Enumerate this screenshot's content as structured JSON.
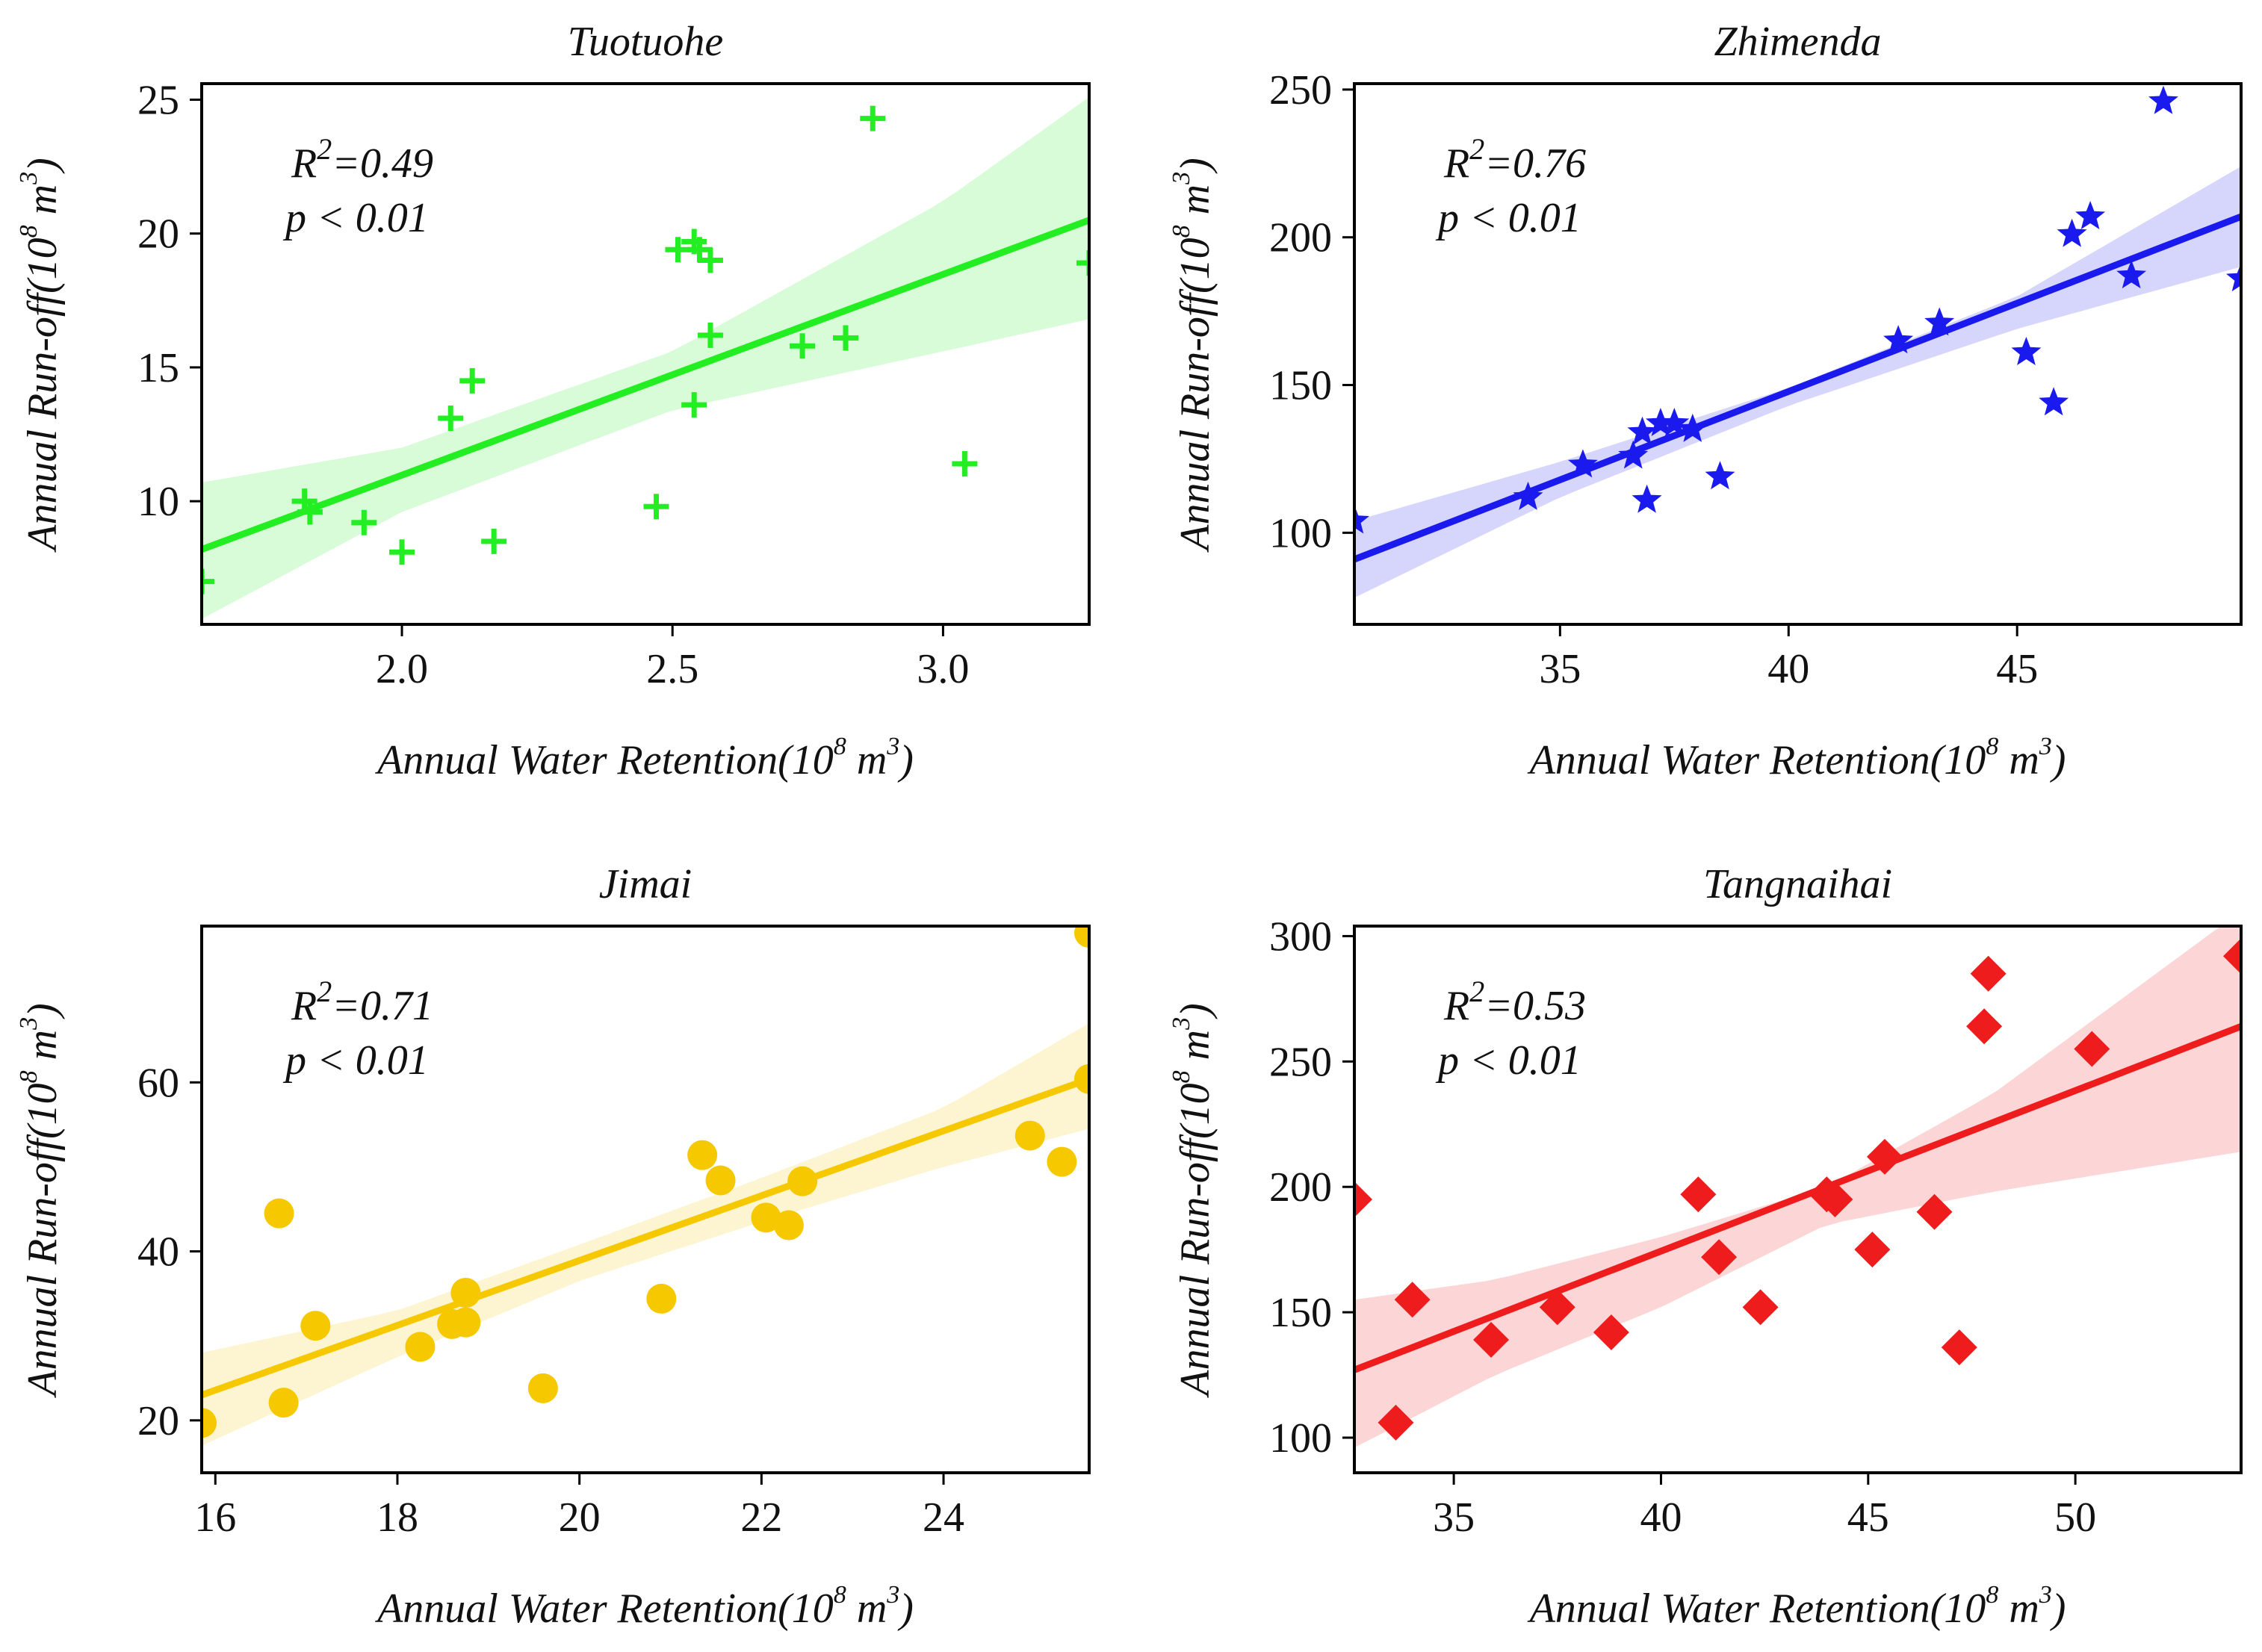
{
  "chart_data": [
    {
      "type": "scatter",
      "title": "Tuotuohe",
      "xlabel": "Annual Water Retention(10",
      "ylabel": "Annual Run-off(10",
      "unit_exponent": "8",
      "unit_base": "m",
      "unit_power": "3",
      "unit_close": ")",
      "annotation_r2_prefix": "R",
      "annotation_r2_sup": "2",
      "annotation_r2_value": "=0.49",
      "annotation_p": "p < 0.01",
      "color": "#22ee22",
      "marker": "plus",
      "xlim": [
        1.63,
        3.27
      ],
      "ylim": [
        5.4,
        25.6
      ],
      "xticks": [
        2.0,
        2.5,
        3.0
      ],
      "yticks": [
        10,
        15,
        20,
        25
      ],
      "x": [
        1.82,
        1.83,
        1.93,
        2.0,
        2.09,
        2.13,
        2.17,
        2.47,
        2.51,
        2.54,
        2.54,
        2.55,
        2.57,
        2.57,
        2.74,
        2.82,
        2.87,
        3.04,
        3.27,
        1.63
      ],
      "y": [
        10.0,
        9.6,
        9.2,
        8.1,
        13.1,
        14.5,
        8.5,
        9.8,
        19.4,
        13.6,
        19.7,
        19.4,
        19.0,
        16.2,
        15.8,
        16.1,
        24.3,
        11.4,
        18.9,
        7.0
      ],
      "fit": {
        "x": [
          1.63,
          3.27
        ],
        "y": [
          8.2,
          20.5
        ]
      },
      "ci_upper": [
        [
          1.63,
          10.7
        ],
        [
          2.0,
          12.0
        ],
        [
          2.5,
          15.6
        ],
        [
          3.0,
          21.2
        ],
        [
          3.27,
          25.1
        ]
      ],
      "ci_lower": [
        [
          1.63,
          5.6
        ],
        [
          2.0,
          9.6
        ],
        [
          2.5,
          13.4
        ],
        [
          3.0,
          15.6
        ],
        [
          3.27,
          16.8
        ]
      ]
    },
    {
      "type": "scatter",
      "title": "Zhimenda",
      "xlabel": "Annual Water Retention(10",
      "ylabel": "Annual Run-off(10",
      "unit_exponent": "8",
      "unit_base": "m",
      "unit_power": "3",
      "unit_close": ")",
      "annotation_r2_prefix": "R",
      "annotation_r2_sup": "2",
      "annotation_r2_value": "=0.76",
      "annotation_p": "p < 0.01",
      "color": "#1a1aee",
      "marker": "star",
      "xlim": [
        30.5,
        49.9
      ],
      "ylim": [
        69,
        252
      ],
      "xticks": [
        35,
        40,
        45
      ],
      "yticks": [
        100,
        150,
        200,
        250
      ],
      "x": [
        30.5,
        34.3,
        35.5,
        36.6,
        36.8,
        36.9,
        37.2,
        37.5,
        37.9,
        38.5,
        42.4,
        43.3,
        45.2,
        45.8,
        46.2,
        46.6,
        47.5,
        48.2,
        49.9
      ],
      "y": [
        104,
        112,
        123,
        126,
        134,
        111,
        137,
        137,
        135,
        119,
        165,
        171,
        161,
        144,
        201,
        207,
        187,
        246,
        186
      ],
      "fit": {
        "x": [
          30.5,
          49.9
        ],
        "y": [
          91,
          207
        ]
      },
      "ci_upper": [
        [
          30.5,
          104
        ],
        [
          35.0,
          124
        ],
        [
          40.0,
          149
        ],
        [
          45.0,
          180
        ],
        [
          49.9,
          224
        ]
      ],
      "ci_lower": [
        [
          30.5,
          78
        ],
        [
          35.0,
          112
        ],
        [
          40.0,
          143
        ],
        [
          45.0,
          169
        ],
        [
          49.9,
          190
        ]
      ]
    },
    {
      "type": "scatter",
      "title": "Jimai",
      "xlabel": "Annual Water Retention(10",
      "ylabel": "Annual Run-off(10",
      "unit_exponent": "8",
      "unit_base": "m",
      "unit_power": "3",
      "unit_close": ")",
      "annotation_r2_prefix": "R",
      "annotation_r2_sup": "2",
      "annotation_r2_value": "=0.71",
      "annotation_p": "p < 0.01",
      "color": "#f5c800",
      "marker": "circle",
      "xlim": [
        15.85,
        25.6
      ],
      "ylim": [
        13.8,
        78.5
      ],
      "xticks": [
        16,
        18,
        20,
        22,
        24
      ],
      "yticks": [
        20,
        40,
        60
      ],
      "x": [
        15.85,
        16.7,
        16.75,
        17.1,
        18.25,
        18.6,
        18.75,
        18.75,
        19.6,
        20.9,
        21.35,
        21.55,
        22.05,
        22.3,
        22.45,
        24.95,
        25.3,
        25.6,
        25.6
      ],
      "y": [
        19.7,
        44.5,
        22.1,
        31.2,
        28.7,
        31.4,
        31.6,
        35.1,
        23.8,
        34.4,
        51.4,
        48.4,
        44.0,
        43.1,
        48.3,
        53.7,
        50.6,
        60.4,
        77.7
      ],
      "fit": {
        "x": [
          15.85,
          25.6
        ],
        "y": [
          23.0,
          60.4
        ]
      },
      "ci_upper": [
        [
          15.85,
          28.0
        ],
        [
          18.0,
          33.0
        ],
        [
          20.0,
          40.8
        ],
        [
          22.0,
          48.7
        ],
        [
          24.0,
          57.0
        ],
        [
          25.6,
          67.0
        ]
      ],
      "ci_lower": [
        [
          15.85,
          17.0
        ],
        [
          18.0,
          27.5
        ],
        [
          20.0,
          36.5
        ],
        [
          22.0,
          43.5
        ],
        [
          24.0,
          50.0
        ],
        [
          25.6,
          54.5
        ]
      ]
    },
    {
      "type": "scatter",
      "title": "Tangnaihai",
      "xlabel": "Annual Water Retention(10",
      "ylabel": "Annual Run-off(10",
      "unit_exponent": "8",
      "unit_base": "m",
      "unit_power": "3",
      "unit_close": ")",
      "annotation_r2_prefix": "R",
      "annotation_r2_sup": "2",
      "annotation_r2_value": "=0.53",
      "annotation_p": "p < 0.01",
      "color": "#ee1c1c",
      "marker": "diamond",
      "xlim": [
        32.6,
        54.0
      ],
      "ylim": [
        86,
        304
      ],
      "xticks": [
        35,
        40,
        45,
        50
      ],
      "yticks": [
        100,
        150,
        200,
        250,
        300
      ],
      "x": [
        32.6,
        33.6,
        34.0,
        35.9,
        37.5,
        38.8,
        40.9,
        41.4,
        42.4,
        44.0,
        44.2,
        45.1,
        45.4,
        46.6,
        47.2,
        47.8,
        47.9,
        50.4,
        54.0
      ],
      "y": [
        195,
        106,
        155,
        139,
        152,
        142,
        197,
        172,
        152,
        197,
        195,
        175,
        212,
        190,
        136,
        264,
        285,
        255,
        292
      ],
      "fit": {
        "x": [
          32.6,
          54.0
        ],
        "y": [
          127,
          264
        ]
      },
      "ci_upper": [
        [
          32.6,
          155
        ],
        [
          36.0,
          163
        ],
        [
          40.0,
          180
        ],
        [
          44.0,
          200
        ],
        [
          48.0,
          237
        ],
        [
          54.0,
          310
        ]
      ],
      "ci_lower": [
        [
          32.6,
          96
        ],
        [
          36.0,
          125
        ],
        [
          40.0,
          152
        ],
        [
          44.0,
          185
        ],
        [
          48.0,
          198
        ],
        [
          54.0,
          214
        ]
      ]
    }
  ]
}
